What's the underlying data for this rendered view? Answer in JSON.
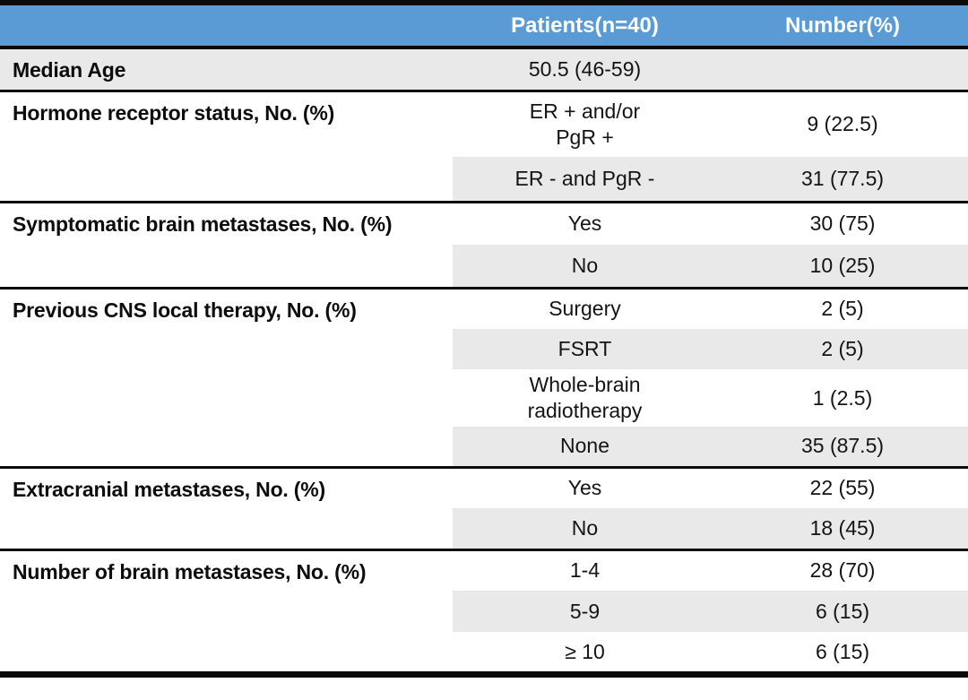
{
  "table": {
    "header": {
      "patients": "Patients(n=40)",
      "number": "Number(%)"
    },
    "colors": {
      "header_bg": "#5b9bd5",
      "header_fg": "#ffffff",
      "stripe_bg": "#e9e9e9",
      "rule": "#0d0d0d"
    },
    "sections": [
      {
        "label": "Median Age",
        "rows": [
          {
            "value": "50.5 (46-59)",
            "number": ""
          }
        ]
      },
      {
        "label": "Hormone receptor status, No. (%)",
        "rows": [
          {
            "value": "ER + and/or\nPgR +",
            "number": "9 (22.5)"
          },
          {
            "value": "ER - and PgR -",
            "number": "31 (77.5)"
          }
        ]
      },
      {
        "label": "Symptomatic brain metastases, No. (%)",
        "rows": [
          {
            "value": "Yes",
            "number": "30 (75)"
          },
          {
            "value": "No",
            "number": "10 (25)"
          }
        ]
      },
      {
        "label": "Previous CNS local therapy, No. (%)",
        "rows": [
          {
            "value": "Surgery",
            "number": "2 (5)"
          },
          {
            "value": "FSRT",
            "number": "2 (5)"
          },
          {
            "value": "Whole-brain\nradiotherapy",
            "number": "1 (2.5)"
          },
          {
            "value": "None",
            "number": "35 (87.5)"
          }
        ]
      },
      {
        "label": "Extracranial metastases, No. (%)",
        "rows": [
          {
            "value": "Yes",
            "number": "22 (55)"
          },
          {
            "value": "No",
            "number": "18 (45)"
          }
        ]
      },
      {
        "label": "Number of brain metastases, No. (%)",
        "rows": [
          {
            "value": "1-4",
            "number": "28 (70)"
          },
          {
            "value": "5-9",
            "number": "6 (15)"
          },
          {
            "value": "≥ 10",
            "number": "6 (15)"
          }
        ]
      }
    ]
  }
}
